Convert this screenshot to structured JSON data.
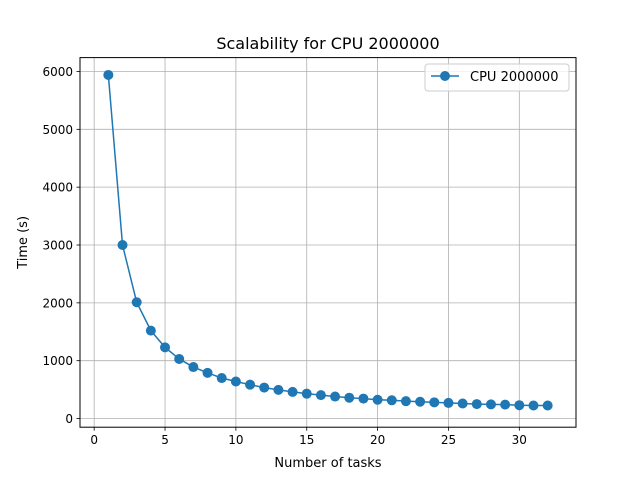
{
  "chart_data": {
    "type": "line",
    "title": "Scalability for CPU 2000000",
    "xlabel": "Number of tasks",
    "ylabel": "Time (s)",
    "xlim": [
      -1.0,
      34.0
    ],
    "ylim": [
      -150,
      6240
    ],
    "xticks": [
      0,
      5,
      10,
      15,
      20,
      25,
      30
    ],
    "yticks": [
      0,
      1000,
      2000,
      3000,
      4000,
      5000,
      6000
    ],
    "grid": true,
    "legend_position": "top-right",
    "series": [
      {
        "name": "CPU 2000000",
        "color": "#1f77b4",
        "marker": "circle",
        "x": [
          1,
          2,
          3,
          4,
          5,
          6,
          7,
          8,
          9,
          10,
          11,
          12,
          13,
          14,
          15,
          16,
          17,
          18,
          19,
          20,
          21,
          22,
          23,
          24,
          25,
          26,
          27,
          28,
          29,
          30,
          31,
          32
        ],
        "y": [
          5940,
          3000,
          2010,
          1520,
          1230,
          1030,
          890,
          790,
          700,
          640,
          585,
          535,
          495,
          460,
          430,
          405,
          380,
          360,
          345,
          325,
          315,
          300,
          290,
          280,
          270,
          260,
          250,
          245,
          240,
          230,
          225,
          225
        ]
      }
    ]
  }
}
